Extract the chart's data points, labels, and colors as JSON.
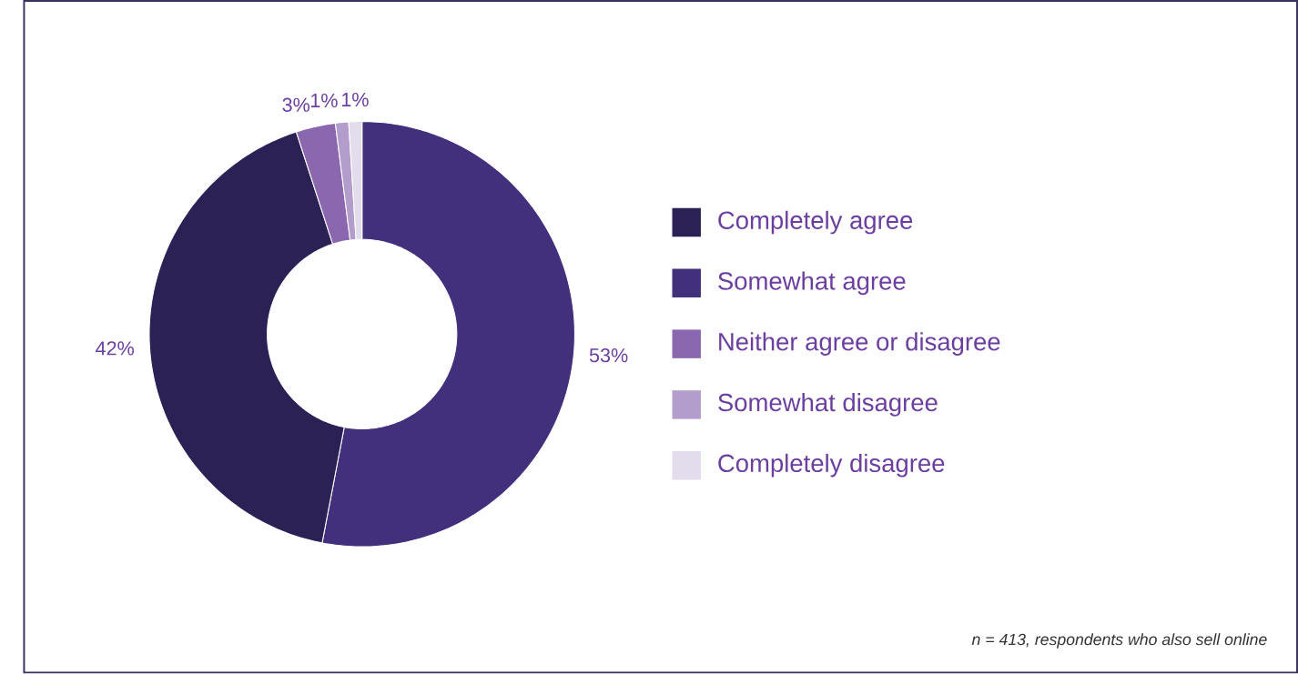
{
  "chart_data": {
    "type": "donut",
    "categories": [
      "Completely agree",
      "Somewhat agree",
      "Neither agree or disagree",
      "Somewhat disagree",
      "Completely disagree"
    ],
    "values": [
      42,
      53,
      3,
      1,
      1
    ],
    "colors": [
      "#2c2154",
      "#42307d",
      "#8a67ae",
      "#b39dcd",
      "#e3dcec"
    ],
    "value_labels": [
      "42%",
      "53%",
      "3%",
      "1%",
      "1%"
    ],
    "legend": "right",
    "annotations": [
      "n = 413, respondents who also sell online"
    ]
  }
}
